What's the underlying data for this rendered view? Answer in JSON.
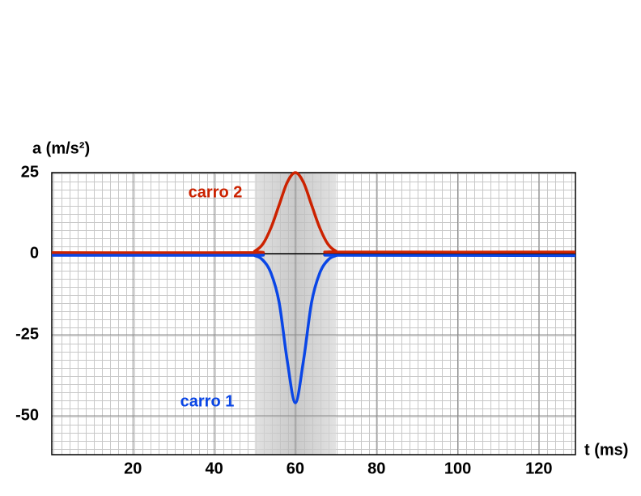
{
  "chart_data": {
    "type": "line",
    "y_label": "a (m/s²)",
    "x_label": "t (ms)",
    "x": [
      0,
      48,
      50,
      52,
      54,
      56,
      58,
      60,
      62,
      64,
      66,
      68,
      70,
      72,
      129
    ],
    "series": [
      {
        "name": "carro 2",
        "color": "#cc2200",
        "values": [
          0.3,
          0.3,
          0.8,
          3,
          8,
          15,
          22,
          25,
          22,
          15,
          8,
          3,
          0.8,
          0.5,
          0.5
        ]
      },
      {
        "name": "carro 1",
        "color": "#0a46e6",
        "values": [
          -0.5,
          -0.5,
          -0.6,
          -2,
          -6,
          -15,
          -33,
          -46,
          -33,
          -15,
          -6,
          -2,
          -0.6,
          -0.5,
          -0.6
        ]
      }
    ],
    "xlim": [
      0,
      129
    ],
    "ylim": [
      -62,
      25
    ],
    "xticks": [
      20,
      40,
      60,
      80,
      100,
      120
    ],
    "yticks": [
      25,
      0,
      -25,
      -50
    ],
    "shaded_region": [
      50,
      70
    ],
    "grid": true
  }
}
